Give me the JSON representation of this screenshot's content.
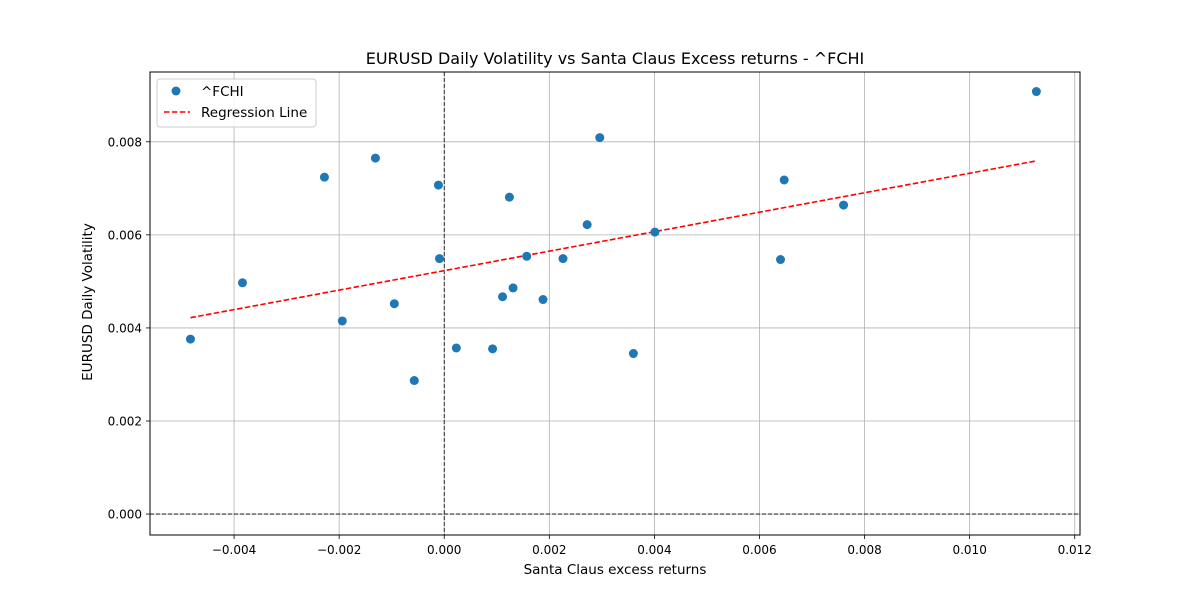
{
  "chart_data": {
    "type": "scatter",
    "title": "EURUSD Daily Volatility vs Santa Claus Excess returns - ^FCHI",
    "xlabel": "Santa Claus excess returns",
    "ylabel": "EURUSD Daily Volatility",
    "xlim": [
      -0.0056,
      0.0121
    ],
    "ylim": [
      -0.00045,
      0.0095
    ],
    "xticks": [
      -0.004,
      -0.002,
      0.0,
      0.002,
      0.004,
      0.006,
      0.008,
      0.01,
      0.012
    ],
    "xtick_labels": [
      "−0.004",
      "−0.002",
      "0.000",
      "0.002",
      "0.004",
      "0.006",
      "0.008",
      "0.010",
      "0.012"
    ],
    "yticks": [
      0.0,
      0.002,
      0.004,
      0.006,
      0.008
    ],
    "ytick_labels": [
      "0.000",
      "0.002",
      "0.004",
      "0.006",
      "0.008"
    ],
    "grid": true,
    "legend_position": "top-left",
    "reference_lines": {
      "x": 0,
      "y": 0
    },
    "series": [
      {
        "name": "^FCHI",
        "color": "#1f77b4",
        "points": [
          {
            "x": -0.00483,
            "y": 0.00376
          },
          {
            "x": -0.00384,
            "y": 0.00497
          },
          {
            "x": -0.00228,
            "y": 0.00724
          },
          {
            "x": -0.00194,
            "y": 0.00415
          },
          {
            "x": -0.00131,
            "y": 0.00765
          },
          {
            "x": -0.00095,
            "y": 0.00452
          },
          {
            "x": -0.00057,
            "y": 0.00287
          },
          {
            "x": -0.00011,
            "y": 0.00707
          },
          {
            "x": -9e-05,
            "y": 0.00549
          },
          {
            "x": 0.00023,
            "y": 0.00357
          },
          {
            "x": 0.00092,
            "y": 0.00355
          },
          {
            "x": 0.00111,
            "y": 0.00467
          },
          {
            "x": 0.00124,
            "y": 0.00681
          },
          {
            "x": 0.00131,
            "y": 0.00486
          },
          {
            "x": 0.00157,
            "y": 0.00554
          },
          {
            "x": 0.00188,
            "y": 0.00461
          },
          {
            "x": 0.00226,
            "y": 0.00549
          },
          {
            "x": 0.00272,
            "y": 0.00622
          },
          {
            "x": 0.00296,
            "y": 0.00809
          },
          {
            "x": 0.0036,
            "y": 0.00345
          },
          {
            "x": 0.00401,
            "y": 0.00606
          },
          {
            "x": 0.0064,
            "y": 0.00547
          },
          {
            "x": 0.00647,
            "y": 0.00718
          },
          {
            "x": 0.0076,
            "y": 0.00664
          },
          {
            "x": 0.01127,
            "y": 0.00908
          }
        ]
      },
      {
        "name": "Regression Line",
        "type": "line",
        "color": "#ff0000",
        "dash": "dashed",
        "points": [
          {
            "x": -0.00483,
            "y": 0.00422
          },
          {
            "x": 0.01127,
            "y": 0.00759
          }
        ]
      }
    ]
  }
}
